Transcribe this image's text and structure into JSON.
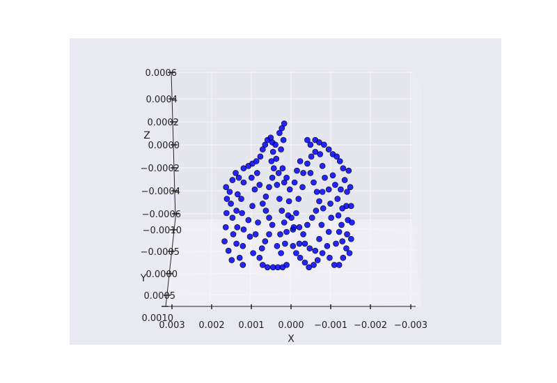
{
  "chart_data": {
    "type": "scatter",
    "projection": "3d",
    "title": "",
    "xlabel": "X",
    "ylabel": "Y",
    "zlabel": "Z",
    "x_ticks": [
      "0.003",
      "0.002",
      "0.001",
      "0.000",
      "−0.001",
      "−0.002",
      "−0.003"
    ],
    "y_ticks": [
      "−0.0010",
      "−0.0005",
      "0.0000",
      "0.0005",
      "0.0010"
    ],
    "z_ticks": [
      "0.0006",
      "0.0004",
      "0.0002",
      "0.0000",
      "−0.0002",
      "−0.0004",
      "−0.0006"
    ],
    "xlim": [
      0.003,
      -0.003
    ],
    "zlim": [
      -0.0006,
      0.0006
    ],
    "grid": true,
    "series": [
      {
        "color": "#0000ff",
        "edge_color": "#000000",
        "marker": "o"
      }
    ],
    "points_xz": [
      [
        0.00168,
        -0.00042
      ],
      [
        0.00165,
        -0.0003
      ],
      [
        0.00163,
        -0.00018
      ],
      [
        0.00162,
        -6e-05
      ],
      [
        0.00164,
        4e-05
      ],
      [
        0.00158,
        -0.0005
      ],
      [
        0.0015,
        -0.00058
      ],
      [
        0.00146,
        -0.00036
      ],
      [
        0.00148,
        -0.00022
      ],
      [
        0.00152,
        -0.0001
      ],
      [
        0.00155,
        0.0
      ],
      [
        0.00148,
        0.0001
      ],
      [
        0.0014,
        0.00016
      ],
      [
        0.00132,
        0.00012
      ],
      [
        0.00135,
        -2e-05
      ],
      [
        0.00138,
        -0.00016
      ],
      [
        0.00136,
        -0.0003
      ],
      [
        0.00138,
        -0.00044
      ],
      [
        0.0013,
        -0.00056
      ],
      [
        0.00122,
        -0.00062
      ],
      [
        0.00122,
        -0.00046
      ],
      [
        0.0012,
        -0.00032
      ],
      [
        0.00124,
        -0.00018
      ],
      [
        0.00126,
        -6e-05
      ],
      [
        0.0012,
        8e-05
      ],
      [
        0.0012,
        0.0002
      ],
      [
        0.00108,
        0.00022
      ],
      [
        0.00098,
        0.00024
      ],
      [
        0.00088,
        0.00026
      ],
      [
        0.00078,
        0.0003
      ],
      [
        0.00072,
        0.00036
      ],
      [
        0.00066,
        0.0004
      ],
      [
        0.0006,
        0.00044
      ],
      [
        0.00052,
        0.00046
      ],
      [
        0.00048,
        0.00042
      ],
      [
        0.00046,
        0.00034
      ],
      [
        0.0005,
        0.00026
      ],
      [
        0.00044,
        0.0002
      ],
      [
        0.00048,
        0.00012
      ],
      [
        0.00056,
        4e-05
      ],
      [
        0.00064,
        -4e-05
      ],
      [
        0.00072,
        -0.0001
      ],
      [
        0.00064,
        -0.00016
      ],
      [
        0.00056,
        -0.00022
      ],
      [
        0.00048,
        -0.00028
      ],
      [
        0.00056,
        -0.00036
      ],
      [
        0.00066,
        -0.00042
      ],
      [
        0.00074,
        -0.00048
      ],
      [
        0.0008,
        -0.00056
      ],
      [
        0.00072,
        -0.00062
      ],
      [
        0.0006,
        -0.00064
      ],
      [
        0.00046,
        -0.00064
      ],
      [
        0.00034,
        -0.00064
      ],
      [
        0.00022,
        -0.00064
      ],
      [
        0.00012,
        -0.00062
      ],
      [
        0.00096,
        -0.00052
      ],
      [
        0.00104,
        -0.00038
      ],
      [
        0.00108,
        -0.00024
      ],
      [
        0.00098,
        -0.00012
      ],
      [
        0.00092,
        2e-05
      ],
      [
        0.001,
        0.00012
      ],
      [
        0.00086,
        0.00016
      ],
      [
        0.0008,
        6e-05
      ],
      [
        0.00084,
        -0.00026
      ],
      [
        0.0009,
        -0.00036
      ],
      [
        0.00032,
        0.00016
      ],
      [
        0.00036,
        6e-05
      ],
      [
        0.0003,
        -6e-05
      ],
      [
        0.00024,
        -0.00016
      ],
      [
        0.00018,
        -0.00026
      ],
      [
        0.00028,
        -0.00036
      ],
      [
        0.00036,
        -0.00046
      ],
      [
        0.00026,
        -0.00052
      ],
      [
        0.00016,
        -0.00044
      ],
      [
        0.00012,
        -0.00034
      ],
      [
        0.00018,
        8e-05
      ],
      [
        0.00022,
        0.0002
      ],
      [
        0.00012,
        0.00012
      ],
      [
        0.00038,
        0.00028
      ],
      [
        0.0004,
        0.0004
      ],
      [
        -0.0004,
        0.00044
      ],
      [
        -0.00048,
        0.0004
      ],
      [
        -0.0006,
        0.00044
      ],
      [
        -0.0007,
        0.00042
      ],
      [
        -0.00082,
        0.0004
      ],
      [
        -0.00094,
        0.00036
      ],
      [
        -0.00104,
        0.00032
      ],
      [
        -0.00114,
        0.0003
      ],
      [
        -0.00122,
        0.00026
      ],
      [
        -0.0013,
        0.0002
      ],
      [
        -0.00134,
        0.0001
      ],
      [
        -0.0014,
        0.0
      ],
      [
        -0.00138,
        -0.00012
      ],
      [
        -0.00142,
        -0.00024
      ],
      [
        -0.0014,
        -0.00036
      ],
      [
        -0.00138,
        -0.00048
      ],
      [
        -0.0013,
        -0.00056
      ],
      [
        -0.0012,
        -0.00062
      ],
      [
        -0.00108,
        -0.00062
      ],
      [
        -0.00096,
        -0.00056
      ],
      [
        -0.0009,
        -0.00046
      ],
      [
        -0.00094,
        -0.00034
      ],
      [
        -0.001,
        -0.00022
      ],
      [
        -0.00098,
        -0.0001
      ],
      [
        -0.00094,
        2e-05
      ],
      [
        -0.00104,
        0.00014
      ],
      [
        -0.0011,
        6e-05
      ],
      [
        -0.00116,
        -6e-05
      ],
      [
        -0.00118,
        -0.0002
      ],
      [
        -0.0012,
        -0.00034
      ],
      [
        -0.00112,
        -0.00044
      ],
      [
        -0.00078,
        -0.00052
      ],
      [
        -0.00066,
        -0.00058
      ],
      [
        -0.00056,
        -0.00062
      ],
      [
        -0.00044,
        -0.00064
      ],
      [
        -0.00034,
        -0.0006
      ],
      [
        -0.00022,
        -0.00056
      ],
      [
        -0.00012,
        -0.00052
      ],
      [
        -4e-05,
        -0.00046
      ],
      [
        -0.0002,
        -0.00044
      ],
      [
        -0.0003,
        -0.00036
      ],
      [
        -0.0004,
        -0.00028
      ],
      [
        -0.00052,
        -0.00022
      ],
      [
        -0.00062,
        -0.00016
      ],
      [
        -0.0007,
        -8e-05
      ],
      [
        -0.00064,
        0.0
      ],
      [
        -0.00056,
        8e-05
      ],
      [
        -0.00048,
        0.00016
      ],
      [
        -0.0004,
        0.00024
      ],
      [
        -0.0005,
        0.0003
      ],
      [
        -0.0006,
        0.00034
      ],
      [
        -0.00072,
        0.00032
      ],
      [
        -0.00078,
        0.00022
      ],
      [
        -0.00084,
        0.00012
      ],
      [
        -0.00078,
        0.0
      ],
      [
        -0.0008,
        -0.00014
      ],
      [
        -0.00076,
        -0.00028
      ],
      [
        -0.0007,
        -0.0004
      ],
      [
        -0.0006,
        -0.0005
      ],
      [
        -0.00046,
        -0.00048
      ],
      [
        -0.00034,
        -0.00044
      ],
      [
        -0.0002,
        -0.0003
      ],
      [
        -0.00012,
        -0.00018
      ],
      [
        -0.00018,
        -6e-05
      ],
      [
        -0.00028,
        4e-05
      ],
      [
        -0.0003,
        0.00016
      ],
      [
        -0.00022,
        0.00026
      ],
      [
        -0.00014,
        0.00018
      ],
      [
        -8e-05,
        8e-05
      ],
      [
        -4e-05,
        -0.00032
      ],
      [
        -0.0015,
        -0.0004
      ],
      [
        -0.00152,
        -0.00026
      ],
      [
        -0.0015,
        -0.00012
      ],
      [
        -0.00148,
        4e-05
      ],
      [
        -0.00144,
        0.00018
      ],
      [
        -0.00146,
        -0.00052
      ],
      [
        -0.00128,
        -0.00042
      ],
      [
        -0.00126,
        -0.00028
      ],
      [
        -0.00128,
        -0.00014
      ],
      [
        -0.00124,
        2e-05
      ],
      [
        0.0003,
        0.0005
      ],
      [
        0.00024,
        0.00054
      ],
      [
        0.00018,
        0.00058
      ],
      [
        0.0002,
        0.00044
      ],
      [
        0.00026,
        0.00036
      ],
      [
        8e-05,
        -0.0002
      ],
      [
        6e-05,
        -8e-05
      ],
      [
        0.0,
        -0.00022
      ],
      [
        -6e-05,
        -0.0003
      ],
      [
        4e-05,
        2e-05
      ]
    ]
  }
}
